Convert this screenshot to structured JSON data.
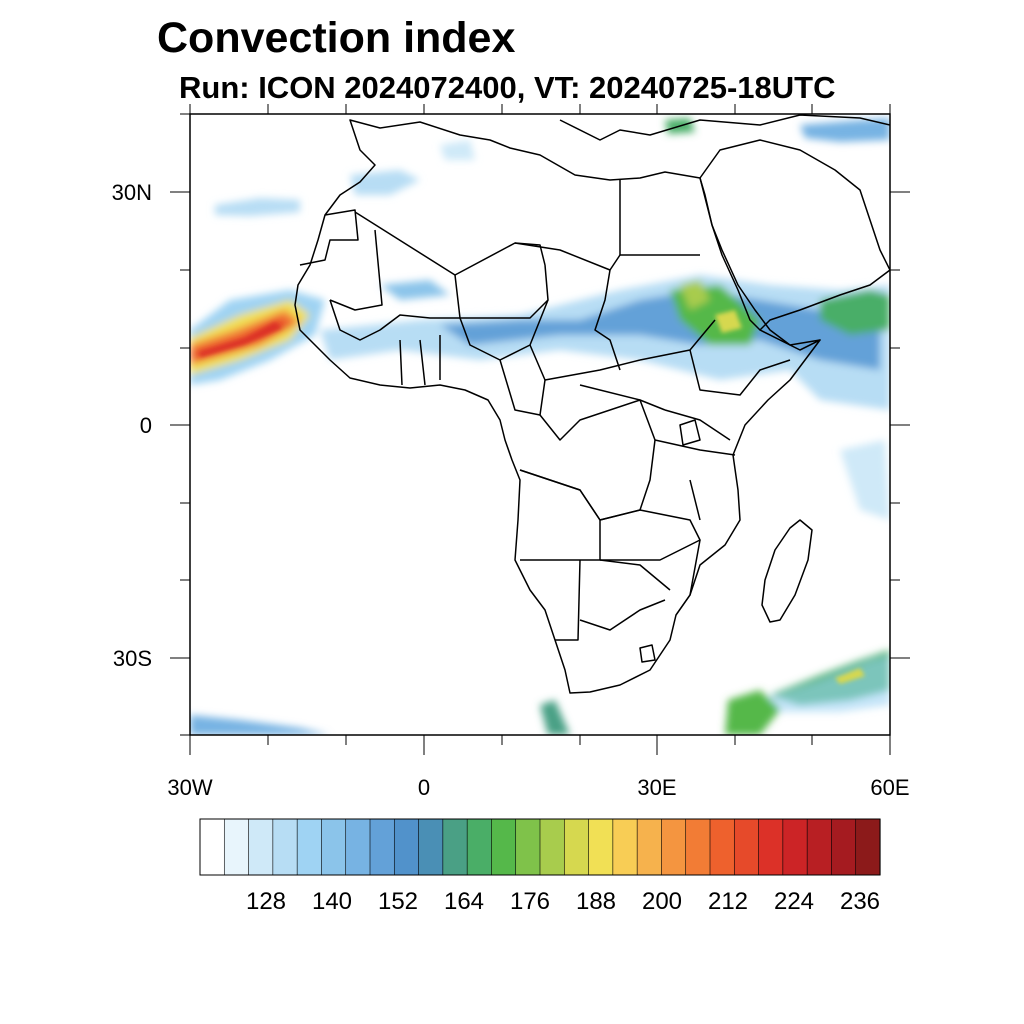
{
  "title": "Convection index",
  "subtitle": "Run: ICON 2024072400,  VT: 20240725-18UTC",
  "lat_labels": [
    "30N",
    "0",
    "30S"
  ],
  "lon_labels": [
    "30W",
    "0",
    "30E",
    "60E"
  ],
  "colorbar": {
    "labels": [
      "128",
      "140",
      "152",
      "164",
      "176",
      "188",
      "200",
      "212",
      "224",
      "236"
    ],
    "colors": [
      "#ffffff",
      "#e8f5fc",
      "#cfe9f8",
      "#b7ddf4",
      "#9fd3f3",
      "#8bc4ea",
      "#77b3e3",
      "#63a1d8",
      "#5192cb",
      "#4a8fb5",
      "#4aa085",
      "#4aae67",
      "#55b84a",
      "#7fc24a",
      "#a8cc4d",
      "#d6d84f",
      "#f1e055",
      "#f8cd55",
      "#f6b24d",
      "#f49540",
      "#f27c35",
      "#ee612d",
      "#e64a2a",
      "#dc3128",
      "#cc2426",
      "#b81f23",
      "#a51b20",
      "#8c1a1a"
    ]
  }
}
